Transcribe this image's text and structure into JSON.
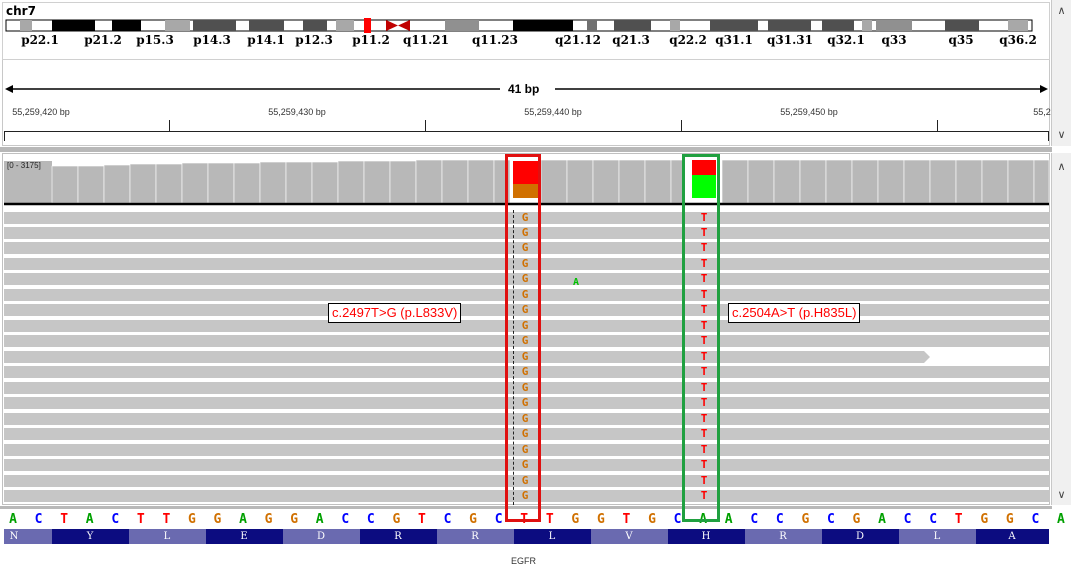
{
  "chromosome": {
    "name": "chr7"
  },
  "ideogram": {
    "bands": [
      "p22.1",
      "p21.2",
      "p15.3",
      "p14.3",
      "p14.1",
      "p12.3",
      "p11.2",
      "q11.21",
      "q11.23",
      "q21.12",
      "q21.3",
      "q22.2",
      "q31.1",
      "q31.31",
      "q32.1",
      "q33",
      "q35",
      "q36.2"
    ]
  },
  "ruler": {
    "span_label": "41 bp",
    "positions": [
      "55,259,420 bp",
      "55,259,430 bp",
      "55,259,440 bp",
      "55,259,450 bp",
      "55,2"
    ]
  },
  "coverage": {
    "range_label": "[0 - 3175]"
  },
  "colors": {
    "ref_mismatch_G": "#d07000",
    "alt_T": "#ff0000",
    "A": "#00a000",
    "C": "#0000ff",
    "red_box": "#e01010",
    "green_box": "#20a040",
    "aa_dark": "#0c0c80",
    "aa_light": "#6a6ab0"
  },
  "reads": {
    "mismatch_G": "G",
    "mismatch_T": "T",
    "extra_A": "A"
  },
  "annotations": {
    "left": "c.2497T>G (p.L833V)",
    "right": "c.2504A>T (p.H835L)"
  },
  "sequence": [
    "A",
    "C",
    "T",
    "A",
    "C",
    "T",
    "T",
    "G",
    "G",
    "A",
    "G",
    "G",
    "A",
    "C",
    "C",
    "G",
    "T",
    "C",
    "G",
    "C",
    "T",
    "T",
    "G",
    "G",
    "T",
    "G",
    "C",
    "A",
    "A",
    "C",
    "C",
    "G",
    "C",
    "G",
    "A",
    "C",
    "C",
    "T",
    "G",
    "G",
    "C",
    "A"
  ],
  "amino_acids": [
    "N",
    "Y",
    "L",
    "E",
    "D",
    "R",
    "R",
    "L",
    "V",
    "H",
    "R",
    "D",
    "L",
    "A"
  ],
  "gene": {
    "name": "EGFR"
  }
}
